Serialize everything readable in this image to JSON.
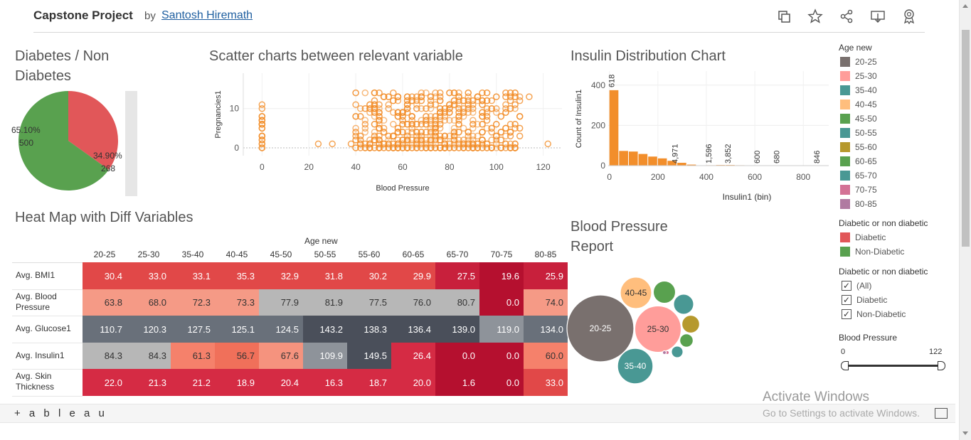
{
  "header": {
    "title": "Capstone Project",
    "by": "by",
    "author": "Santosh Hiremath",
    "icons": [
      "duplicate-icon",
      "favorite-star-icon",
      "share-icon",
      "download-icon",
      "badge-icon"
    ]
  },
  "sections": {
    "pie_title": "Diabetes / Non Diabetes",
    "scatter_title": "Scatter charts between relevant variable",
    "insulin_title": "Insulin Distribution Chart",
    "heatmap_title": "Heat Map with Diff Variables",
    "bubble_title": "Blood Pressure Report"
  },
  "pie_chart": {
    "type": "pie",
    "slices": [
      {
        "name": "Non-Diabetic",
        "percent_label": "65.10%",
        "count_label": "500",
        "value": 500,
        "color": "#59a14f"
      },
      {
        "name": "Diabetic",
        "percent_label": "34.90%",
        "count_label": "268",
        "value": 268,
        "color": "#e15759"
      }
    ]
  },
  "scatter_chart": {
    "type": "scatter",
    "xlabel": "Blood Pressure",
    "ylabel": "Pregnancies1",
    "x_ticks": [
      "0",
      "20",
      "40",
      "60",
      "80",
      "100",
      "120"
    ],
    "y_ticks": [
      "0",
      "10"
    ],
    "xlim": [
      -8,
      128
    ],
    "ylim": [
      -2,
      19
    ],
    "color": "#f28e2b"
  },
  "insulin_chart": {
    "type": "bar",
    "xlabel": "Insulin1 (bin)",
    "ylabel": "Count of Insulin1",
    "x_ticks": [
      "0",
      "200",
      "400",
      "600",
      "800"
    ],
    "y_ticks": [
      "0",
      "200",
      "400"
    ],
    "xlim": [
      -5,
      905
    ],
    "ylim": [
      0,
      470
    ],
    "bin_width": 40,
    "bins": [
      0,
      40,
      80,
      120,
      160,
      200,
      240,
      280,
      320,
      360,
      400,
      440,
      480,
      520,
      560,
      600,
      640,
      680,
      720,
      760,
      800,
      840
    ],
    "counts": [
      375,
      73,
      70,
      58,
      45,
      36,
      24,
      14,
      5,
      0,
      2,
      3,
      3,
      2,
      0,
      1,
      0,
      1,
      0,
      0,
      0,
      1
    ],
    "labels": [
      {
        "x": 0,
        "text": "618"
      },
      {
        "x": 260,
        "text": "4,971"
      },
      {
        "x": 400,
        "text": "1,596"
      },
      {
        "x": 480,
        "text": "3,852"
      },
      {
        "x": 600,
        "text": "600"
      },
      {
        "x": 680,
        "text": "680"
      },
      {
        "x": 846,
        "text": "846"
      }
    ],
    "color": "#f28e2b"
  },
  "heatmap": {
    "type": "heatmap",
    "col_header": "Age new",
    "columns": [
      "20-25",
      "25-30",
      "35-40",
      "40-45",
      "45-50",
      "50-55",
      "55-60",
      "60-65",
      "65-70",
      "70-75",
      "80-85"
    ],
    "rows": [
      {
        "label": "Avg. BMI1",
        "values": [
          "30.4",
          "33.0",
          "33.1",
          "35.3",
          "32.9",
          "31.8",
          "30.2",
          "29.9",
          "27.5",
          "19.6",
          "25.9"
        ],
        "colors": [
          "#e14848",
          "#e14848",
          "#e14848",
          "#e14848",
          "#e14848",
          "#e14848",
          "#e14848",
          "#e14848",
          "#c8203c",
          "#b5102f",
          "#c8203c"
        ]
      },
      {
        "label": "Avg. Blood Pressure",
        "values": [
          "63.8",
          "68.0",
          "72.3",
          "73.3",
          "77.9",
          "81.9",
          "77.5",
          "76.0",
          "80.7",
          "0.0",
          "74.0"
        ],
        "colors": [
          "#f59a86",
          "#f59a86",
          "#f59a86",
          "#f59a86",
          "#b7b7b7",
          "#b7b7b7",
          "#b7b7b7",
          "#b7b7b7",
          "#b7b7b7",
          "#b5102f",
          "#f59a86"
        ]
      },
      {
        "label": "Avg. Glucose1",
        "values": [
          "110.7",
          "120.3",
          "127.5",
          "125.1",
          "124.5",
          "143.2",
          "138.3",
          "136.4",
          "139.0",
          "119.0",
          "134.0"
        ],
        "colors": [
          "#69707a",
          "#69707a",
          "#69707a",
          "#69707a",
          "#69707a",
          "#4a4f5a",
          "#4a4f5a",
          "#4a4f5a",
          "#4a4f5a",
          "#8e939a",
          "#69707a"
        ]
      },
      {
        "label": "Avg. Insulin1",
        "values": [
          "84.3",
          "84.3",
          "61.3",
          "56.7",
          "67.6",
          "109.9",
          "149.5",
          "26.4",
          "0.0",
          "0.0",
          "60.0"
        ],
        "colors": [
          "#b7b7b7",
          "#b7b7b7",
          "#f5816b",
          "#f0705a",
          "#f5937e",
          "#8e939a",
          "#4a4f5a",
          "#d52b44",
          "#b5102f",
          "#b5102f",
          "#f5816b"
        ]
      },
      {
        "label": "Avg. Skin Thickness",
        "values": [
          "22.0",
          "21.3",
          "21.2",
          "18.9",
          "20.4",
          "16.3",
          "18.7",
          "20.0",
          "1.6",
          "0.0",
          "33.0"
        ],
        "colors": [
          "#d52b44",
          "#d52b44",
          "#d52b44",
          "#d52b44",
          "#d52b44",
          "#d52b44",
          "#d52b44",
          "#d52b44",
          "#b5102f",
          "#b5102f",
          "#e14848"
        ]
      }
    ]
  },
  "bubble_chart": {
    "type": "bubble",
    "bubbles": [
      {
        "label": "20-25",
        "value": 100,
        "color": "#79706e"
      },
      {
        "label": "25-30",
        "value": 48,
        "color": "#ff9d9a"
      },
      {
        "label": "40-45",
        "value": 22,
        "color": "#ffbe7d"
      },
      {
        "label": "35-40",
        "value": 28,
        "color": "#499894"
      },
      {
        "label": "",
        "value": 11,
        "color": "#59a14f"
      },
      {
        "label": "",
        "value": 9,
        "color": "#499894"
      },
      {
        "label": "",
        "value": 7,
        "color": "#b6992d"
      },
      {
        "label": "",
        "value": 4,
        "color": "#59a14f"
      },
      {
        "label": "",
        "value": 3,
        "color": "#499894"
      },
      {
        "label": "",
        "value": 0.3,
        "color": "#d37295"
      },
      {
        "label": "",
        "value": 0.3,
        "color": "#b07aa1"
      }
    ]
  },
  "legend_age": {
    "title": "Age new",
    "items": [
      {
        "label": "20-25",
        "color": "#79706e"
      },
      {
        "label": "25-30",
        "color": "#ff9d9a"
      },
      {
        "label": "35-40",
        "color": "#499894"
      },
      {
        "label": "40-45",
        "color": "#ffbe7d"
      },
      {
        "label": "45-50",
        "color": "#59a14f"
      },
      {
        "label": "50-55",
        "color": "#499894"
      },
      {
        "label": "55-60",
        "color": "#b6992d"
      },
      {
        "label": "60-65",
        "color": "#59a14f"
      },
      {
        "label": "65-70",
        "color": "#499894"
      },
      {
        "label": "70-75",
        "color": "#d37295"
      },
      {
        "label": "80-85",
        "color": "#b07aa1"
      }
    ]
  },
  "legend_diabetic": {
    "title": "Diabetic or non diabetic",
    "items": [
      {
        "label": "Diabetic",
        "color": "#e15759"
      },
      {
        "label": "Non-Diabetic",
        "color": "#59a14f"
      }
    ]
  },
  "filter_diabetic": {
    "title": "Diabetic or non diabetic",
    "options": [
      {
        "label": "(All)",
        "checked": true
      },
      {
        "label": "Diabetic",
        "checked": true
      },
      {
        "label": "Non-Diabetic",
        "checked": true
      }
    ]
  },
  "filter_bp": {
    "title": "Blood Pressure",
    "min_label": "0",
    "max_label": "122",
    "min": 0,
    "max": 122
  },
  "footer": {
    "logo": "+ a b l e a u",
    "watermark_title": "Activate Windows",
    "watermark_sub": "Go to Settings to activate Windows."
  }
}
